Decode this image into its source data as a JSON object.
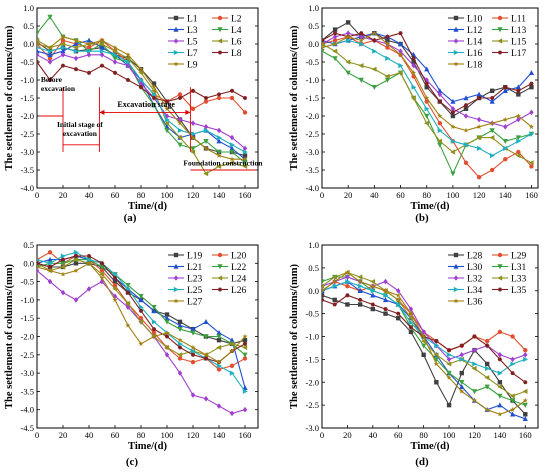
{
  "figure": {
    "panels": [
      "(a)",
      "(b)",
      "(c)",
      "(d)"
    ]
  },
  "chart_data": [
    {
      "type": "line",
      "panel_label": "(a)",
      "xlabel": "Time/(d)",
      "ylabel": "The settlement of columns/(mm)",
      "xlim": [
        0,
        170
      ],
      "ylim": [
        -4.0,
        1.0
      ],
      "xticks": [
        0,
        20,
        40,
        60,
        80,
        100,
        120,
        140,
        160
      ],
      "yticks": [
        1.0,
        0.5,
        0.0,
        -0.5,
        -1.0,
        -1.5,
        -2.0,
        -2.5,
        -3.0,
        -3.5,
        -4.0
      ],
      "legend_position": "top-right",
      "annotations": {
        "before": "Before excavation",
        "initial": "Initial stage of excavation",
        "excavation": "Excavation stage",
        "foundation": "Foundation construction"
      },
      "x": [
        0,
        10,
        20,
        30,
        40,
        50,
        60,
        70,
        80,
        90,
        100,
        110,
        120,
        130,
        140,
        150,
        160
      ],
      "series": [
        {
          "name": "L1",
          "color": "#404040",
          "marker": "square",
          "values": [
            0.05,
            -0.2,
            -0.1,
            -0.2,
            -0.15,
            -0.1,
            -0.3,
            -0.4,
            -0.7,
            -1.1,
            -1.6,
            -2.1,
            -2.6,
            -2.9,
            -3.0,
            -3.0,
            -3.1
          ]
        },
        {
          "name": "L2",
          "color": "#e05030",
          "marker": "circle",
          "values": [
            0.0,
            -0.4,
            0.1,
            0.0,
            -0.1,
            0.1,
            -0.2,
            -0.5,
            -1.0,
            -1.4,
            -1.6,
            -1.4,
            -1.8,
            -1.6,
            -1.5,
            -1.5,
            -1.9
          ]
        },
        {
          "name": "L3",
          "color": "#2050d0",
          "marker": "triangle-up",
          "values": [
            -0.2,
            -0.3,
            -0.2,
            0.0,
            0.1,
            -0.1,
            -0.3,
            -0.6,
            -1.0,
            -1.7,
            -2.3,
            -2.6,
            -2.5,
            -2.4,
            -2.7,
            -2.9,
            -3.2
          ]
        },
        {
          "name": "L4",
          "color": "#3aa040",
          "marker": "triangle-down",
          "values": [
            0.3,
            0.75,
            0.2,
            0.1,
            -0.2,
            0.0,
            -0.4,
            -0.5,
            -1.2,
            -1.7,
            -2.4,
            -2.8,
            -2.9,
            -2.7,
            -3.0,
            -3.0,
            -3.3
          ]
        },
        {
          "name": "L5",
          "color": "#a040d0",
          "marker": "diamond",
          "values": [
            -0.3,
            -0.5,
            -0.3,
            -0.4,
            -0.3,
            -0.3,
            -0.5,
            -0.6,
            -1.1,
            -1.5,
            -2.0,
            -2.1,
            -2.2,
            -2.3,
            -2.4,
            -2.6,
            -2.9
          ]
        },
        {
          "name": "L6",
          "color": "#909020",
          "marker": "triangle-left",
          "values": [
            0.1,
            -0.1,
            0.0,
            -0.1,
            0.0,
            0.0,
            -0.2,
            -0.4,
            -0.8,
            -1.3,
            -2.2,
            -2.6,
            -3.0,
            -3.6,
            -3.4,
            -3.3,
            -3.4
          ]
        },
        {
          "name": "L7",
          "color": "#20b0c0",
          "marker": "triangle-right",
          "values": [
            -0.1,
            -0.2,
            -0.1,
            -0.2,
            -0.2,
            -0.2,
            -0.3,
            -0.5,
            -1.0,
            -1.4,
            -2.1,
            -2.4,
            -2.5,
            -2.4,
            -2.6,
            -2.8,
            -3.0
          ]
        },
        {
          "name": "L8",
          "color": "#802020",
          "marker": "hexagon",
          "values": [
            -0.5,
            -1.0,
            -0.6,
            -0.7,
            -0.8,
            -0.6,
            -0.8,
            -1.0,
            -1.2,
            -1.5,
            -1.6,
            -1.5,
            -1.3,
            -1.5,
            -1.4,
            -1.3,
            -1.5
          ]
        },
        {
          "name": "L9",
          "color": "#a08010",
          "marker": "star",
          "values": [
            0.0,
            -0.1,
            0.2,
            0.1,
            0.0,
            0.1,
            -0.1,
            -0.3,
            -0.7,
            -1.2,
            -1.8,
            -2.2,
            -2.6,
            -2.9,
            -3.1,
            -3.2,
            -3.2
          ]
        }
      ]
    },
    {
      "type": "line",
      "panel_label": "(b)",
      "xlabel": "Time/(d)",
      "ylabel": "The settlement of columns/(mm)",
      "xlim": [
        0,
        165
      ],
      "ylim": [
        -4.0,
        1.0
      ],
      "xticks": [
        0,
        20,
        40,
        60,
        80,
        100,
        120,
        140,
        160
      ],
      "yticks": [
        1.0,
        0.5,
        0.0,
        -0.5,
        -1.0,
        -1.5,
        -2.0,
        -2.5,
        -3.0,
        -3.5,
        -4.0
      ],
      "legend_position": "top-right",
      "x": [
        0,
        10,
        20,
        30,
        40,
        50,
        60,
        70,
        80,
        90,
        100,
        110,
        120,
        130,
        140,
        150,
        160
      ],
      "series": [
        {
          "name": "L10",
          "color": "#404040",
          "marker": "square",
          "values": [
            0.1,
            0.4,
            0.6,
            0.2,
            0.3,
            0.1,
            0.0,
            -0.5,
            -1.2,
            -1.6,
            -2.0,
            -1.8,
            -1.5,
            -1.3,
            -1.2,
            -1.4,
            -1.2
          ]
        },
        {
          "name": "L11",
          "color": "#e05030",
          "marker": "circle",
          "values": [
            0.0,
            0.1,
            0.2,
            0.0,
            0.1,
            -0.1,
            -0.3,
            -0.9,
            -1.6,
            -2.2,
            -2.7,
            -3.3,
            -3.7,
            -3.5,
            -3.2,
            -3.0,
            -3.4
          ]
        },
        {
          "name": "L12",
          "color": "#2050d0",
          "marker": "triangle-up",
          "values": [
            0.1,
            0.0,
            0.1,
            0.2,
            0.3,
            0.2,
            0.0,
            -0.3,
            -0.7,
            -1.3,
            -1.6,
            -1.5,
            -1.4,
            -1.6,
            -1.3,
            -1.2,
            -0.8
          ]
        },
        {
          "name": "L13",
          "color": "#3aa040",
          "marker": "triangle-down",
          "values": [
            -0.2,
            -0.4,
            -0.8,
            -1.0,
            -1.2,
            -1.0,
            -0.8,
            -1.5,
            -2.0,
            -2.8,
            -3.6,
            -2.8,
            -2.6,
            -2.4,
            -2.7,
            -2.6,
            -2.5
          ]
        },
        {
          "name": "L14",
          "color": "#a040d0",
          "marker": "diamond",
          "values": [
            0.0,
            0.2,
            0.3,
            0.2,
            0.1,
            0.0,
            -0.2,
            -0.6,
            -1.0,
            -1.4,
            -1.8,
            -2.0,
            -2.1,
            -2.2,
            -2.3,
            -2.1,
            -1.9
          ]
        },
        {
          "name": "L15",
          "color": "#909020",
          "marker": "triangle-left",
          "values": [
            0.0,
            -0.2,
            -0.5,
            -0.6,
            -0.7,
            -0.9,
            -0.8,
            -1.5,
            -2.2,
            -2.7,
            -3.0,
            -2.8,
            -2.6,
            -2.6,
            -2.9,
            -3.1,
            -3.3
          ]
        },
        {
          "name": "L16",
          "color": "#20b0c0",
          "marker": "triangle-right",
          "values": [
            -0.1,
            0.0,
            0.1,
            0.0,
            -0.2,
            -0.4,
            -0.6,
            -1.2,
            -1.8,
            -2.4,
            -2.7,
            -2.8,
            -2.9,
            -3.1,
            -2.9,
            -2.7,
            -2.5
          ]
        },
        {
          "name": "L17",
          "color": "#802020",
          "marker": "hexagon",
          "values": [
            0.1,
            0.3,
            0.2,
            0.3,
            0.1,
            0.2,
            0.3,
            -0.4,
            -1.1,
            -1.6,
            -1.9,
            -1.7,
            -1.5,
            -1.5,
            -1.2,
            -1.3,
            -1.1
          ]
        },
        {
          "name": "L18",
          "color": "#a08010",
          "marker": "star",
          "values": [
            -0.1,
            0.0,
            0.2,
            0.1,
            0.3,
            0.0,
            -0.3,
            -0.8,
            -1.5,
            -2.0,
            -2.3,
            -2.4,
            -2.3,
            -2.2,
            -2.1,
            -2.0,
            -2.3
          ]
        }
      ]
    },
    {
      "type": "line",
      "panel_label": "(c)",
      "xlabel": "Time/(d)",
      "ylabel": "The settlement of columns/(mm)",
      "xlim": [
        0,
        170
      ],
      "ylim": [
        -4.5,
        0.5
      ],
      "xticks": [
        0,
        20,
        40,
        60,
        80,
        100,
        120,
        140,
        160
      ],
      "yticks": [
        0.5,
        0.0,
        -0.5,
        -1.0,
        -1.5,
        -2.0,
        -2.5,
        -3.0,
        -3.5,
        -4.0,
        -4.5
      ],
      "legend_position": "top-right",
      "x": [
        0,
        10,
        20,
        30,
        40,
        50,
        60,
        70,
        80,
        90,
        100,
        110,
        120,
        130,
        140,
        150,
        160
      ],
      "series": [
        {
          "name": "L19",
          "color": "#404040",
          "marker": "square",
          "values": [
            0.0,
            -0.1,
            -0.1,
            0.0,
            0.0,
            -0.1,
            -0.5,
            -0.8,
            -1.0,
            -1.3,
            -1.4,
            -1.6,
            -1.8,
            -2.0,
            -2.1,
            -2.2,
            -2.1
          ]
        },
        {
          "name": "L20",
          "color": "#e05030",
          "marker": "circle",
          "values": [
            0.1,
            0.3,
            0.0,
            0.2,
            0.1,
            -0.2,
            -0.6,
            -1.1,
            -1.5,
            -1.9,
            -2.3,
            -2.6,
            -2.7,
            -2.6,
            -2.9,
            -2.8,
            -2.6
          ]
        },
        {
          "name": "L21",
          "color": "#2050d0",
          "marker": "triangle-up",
          "values": [
            0.0,
            0.1,
            0.1,
            0.2,
            0.1,
            0.0,
            -0.4,
            -0.7,
            -1.0,
            -1.3,
            -1.5,
            -1.7,
            -1.8,
            -1.6,
            -1.9,
            -2.1,
            -3.4
          ]
        },
        {
          "name": "L22",
          "color": "#3aa040",
          "marker": "triangle-down",
          "values": [
            -0.1,
            0.0,
            0.0,
            0.1,
            0.1,
            -0.1,
            -0.3,
            -0.6,
            -0.9,
            -1.2,
            -1.6,
            -1.8,
            -1.9,
            -2.0,
            -2.0,
            -2.2,
            -2.5
          ]
        },
        {
          "name": "L23",
          "color": "#a040d0",
          "marker": "diamond",
          "values": [
            -0.2,
            -0.5,
            -0.8,
            -1.0,
            -0.7,
            -0.5,
            -0.9,
            -1.2,
            -1.6,
            -2.0,
            -2.5,
            -3.0,
            -3.6,
            -3.7,
            -3.9,
            -4.1,
            -4.0
          ]
        },
        {
          "name": "L24",
          "color": "#909020",
          "marker": "triangle-left",
          "values": [
            0.0,
            -0.2,
            -0.1,
            0.1,
            0.0,
            -0.3,
            -0.7,
            -1.1,
            -1.6,
            -2.0,
            -2.3,
            -2.5,
            -2.4,
            -2.5,
            -2.3,
            -2.2,
            -2.3
          ]
        },
        {
          "name": "L25",
          "color": "#20b0c0",
          "marker": "triangle-right",
          "values": [
            0.1,
            0.0,
            0.2,
            0.3,
            0.1,
            0.0,
            -0.3,
            -0.7,
            -1.2,
            -1.6,
            -1.9,
            -2.2,
            -2.4,
            -2.6,
            -2.8,
            -3.0,
            -3.5
          ]
        },
        {
          "name": "L26",
          "color": "#802020",
          "marker": "hexagon",
          "values": [
            0.0,
            -0.1,
            0.1,
            0.2,
            0.2,
            0.0,
            -0.4,
            -0.8,
            -1.3,
            -1.8,
            -2.0,
            -2.3,
            -2.5,
            -2.6,
            -2.7,
            -2.4,
            -2.2
          ]
        },
        {
          "name": "L27",
          "color": "#a08010",
          "marker": "star",
          "values": [
            -0.1,
            -0.2,
            -0.3,
            -0.2,
            0.0,
            -0.4,
            -1.0,
            -1.7,
            -2.2,
            -2.0,
            -1.9,
            -2.1,
            -2.3,
            -2.5,
            -2.7,
            -2.4,
            -2.0
          ]
        }
      ]
    },
    {
      "type": "line",
      "panel_label": "(d)",
      "xlabel": "Time/(d)",
      "ylabel": "The settlement of columns/(mm)",
      "xlim": [
        0,
        170
      ],
      "ylim": [
        -3.0,
        1.0
      ],
      "xticks": [
        0,
        20,
        40,
        60,
        80,
        100,
        120,
        140,
        160
      ],
      "yticks": [
        1.0,
        0.5,
        0.0,
        -0.5,
        -1.0,
        -1.5,
        -2.0,
        -2.5,
        -3.0
      ],
      "legend_position": "top-right",
      "x": [
        0,
        10,
        20,
        30,
        40,
        50,
        60,
        70,
        80,
        90,
        100,
        110,
        120,
        130,
        140,
        150,
        160
      ],
      "series": [
        {
          "name": "L28",
          "color": "#404040",
          "marker": "square",
          "values": [
            -0.1,
            -0.2,
            -0.3,
            -0.3,
            -0.4,
            -0.5,
            -0.6,
            -0.9,
            -1.4,
            -2.0,
            -2.5,
            -1.8,
            -1.3,
            -1.6,
            -2.0,
            -2.4,
            -2.7
          ]
        },
        {
          "name": "L29",
          "color": "#e05030",
          "marker": "circle",
          "values": [
            0.0,
            0.2,
            0.1,
            0.0,
            0.1,
            0.0,
            -0.2,
            -0.5,
            -0.9,
            -1.1,
            -1.3,
            -1.2,
            -1.0,
            -1.1,
            -0.9,
            -1.0,
            -1.3
          ]
        },
        {
          "name": "L30",
          "color": "#2050d0",
          "marker": "triangle-up",
          "values": [
            0.0,
            0.1,
            0.2,
            0.0,
            -0.1,
            -0.2,
            -0.3,
            -0.6,
            -1.0,
            -1.4,
            -1.8,
            -2.1,
            -2.4,
            -2.6,
            -2.5,
            -2.7,
            -2.8
          ]
        },
        {
          "name": "L31",
          "color": "#3aa040",
          "marker": "triangle-down",
          "values": [
            0.2,
            0.3,
            0.3,
            0.2,
            0.0,
            -0.1,
            -0.3,
            -0.8,
            -1.2,
            -1.5,
            -1.8,
            -2.0,
            -2.2,
            -2.1,
            -2.3,
            -2.4,
            -2.5
          ]
        },
        {
          "name": "L32",
          "color": "#a040d0",
          "marker": "diamond",
          "values": [
            0.1,
            0.2,
            0.3,
            0.2,
            0.1,
            0.2,
            0.0,
            -0.4,
            -0.9,
            -1.2,
            -1.5,
            -1.4,
            -1.3,
            -1.2,
            -1.4,
            -1.5,
            -1.4
          ]
        },
        {
          "name": "L33",
          "color": "#909020",
          "marker": "triangle-left",
          "values": [
            0.1,
            0.3,
            0.4,
            0.3,
            0.2,
            0.0,
            -0.2,
            -0.6,
            -1.1,
            -1.4,
            -1.6,
            -1.5,
            -1.7,
            -1.9,
            -2.1,
            -2.3,
            -2.2
          ]
        },
        {
          "name": "L34",
          "color": "#20b0c0",
          "marker": "triangle-right",
          "values": [
            0.0,
            0.1,
            0.2,
            0.1,
            0.0,
            -0.1,
            -0.3,
            -0.7,
            -1.0,
            -1.2,
            -1.4,
            -1.5,
            -1.6,
            -1.7,
            -1.8,
            -1.6,
            -1.5
          ]
        },
        {
          "name": "L35",
          "color": "#802020",
          "marker": "hexagon",
          "values": [
            -0.2,
            -0.3,
            -0.1,
            -0.2,
            -0.3,
            -0.4,
            -0.5,
            -0.8,
            -1.0,
            -1.1,
            -1.3,
            -1.2,
            -1.0,
            -1.2,
            -1.5,
            -1.8,
            -2.0
          ]
        },
        {
          "name": "L36",
          "color": "#a08010",
          "marker": "star",
          "values": [
            0.0,
            0.2,
            0.4,
            0.2,
            0.1,
            0.0,
            -0.1,
            -0.5,
            -1.0,
            -1.6,
            -1.9,
            -2.2,
            -2.4,
            -2.6,
            -2.7,
            -2.6,
            -2.4
          ]
        }
      ]
    }
  ]
}
